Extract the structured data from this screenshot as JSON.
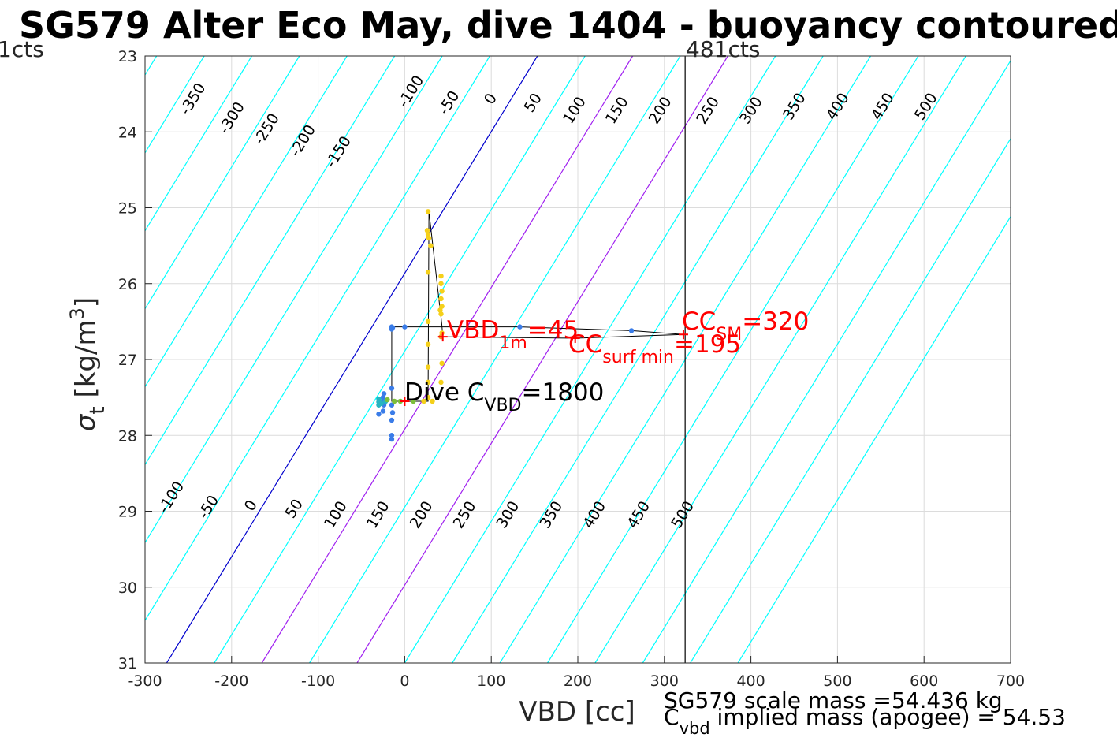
{
  "chart_data": {
    "type": "scatter",
    "title": "SG579 Alter Eco May, dive 1404 - buoyancy contoured",
    "xlabel": "VBD [cc]",
    "ylabel_main": "σ",
    "ylabel_sub": "t",
    "ylabel_unit": "[kg/m",
    "ylabel_sup": "3",
    "ylabel_close": "]",
    "xlim": [
      -300,
      700
    ],
    "ylim": [
      31,
      23
    ],
    "y_reversed": true,
    "grid": true,
    "xticks": [
      -300,
      -200,
      -100,
      0,
      100,
      200,
      300,
      400,
      500,
      600,
      700
    ],
    "xtick_labels": [
      "-300",
      "-200",
      "-100",
      "0",
      "100",
      "200",
      "300",
      "400",
      "500",
      "600",
      "700"
    ],
    "yticks": [
      23,
      24,
      25,
      26,
      27,
      28,
      29,
      30,
      31
    ],
    "ytick_labels": [
      "23",
      "24",
      "25",
      "26",
      "27",
      "28",
      "29",
      "30",
      "31"
    ],
    "colors": {
      "contour": "#00ffff",
      "zero_contour": "#0000cd",
      "magenta_contour": "#a020f0",
      "annotation": "#ff0000",
      "track": "#000000"
    },
    "contours": {
      "levels": [
        -350,
        -300,
        -250,
        -200,
        -150,
        -100,
        -50,
        0,
        50,
        100,
        150,
        200,
        250,
        300,
        350,
        400,
        450,
        500
      ],
      "slope_cc_per_sigma": -90.4,
      "zero_line_points": [
        [
          -275,
          31
        ],
        [
          148,
          23.1
        ]
      ],
      "highlight_zero": 0,
      "highlight_magenta": [
        100,
        200
      ],
      "top_labels": [
        {
          "text": "-350",
          "x": -240,
          "y": 23.6
        },
        {
          "text": "-300",
          "x": -195,
          "y": 23.85
        },
        {
          "text": "-250",
          "x": -155,
          "y": 24.0
        },
        {
          "text": "-200",
          "x": -113,
          "y": 24.15
        },
        {
          "text": "-150",
          "x": -72,
          "y": 24.3
        },
        {
          "text": "-100",
          "x": 12,
          "y": 23.5
        },
        {
          "text": "-50",
          "x": 56,
          "y": 23.65
        },
        {
          "text": "0",
          "x": 104,
          "y": 23.6
        },
        {
          "text": "50",
          "x": 153,
          "y": 23.65
        },
        {
          "text": "100",
          "x": 201,
          "y": 23.75
        },
        {
          "text": "150",
          "x": 250,
          "y": 23.75
        },
        {
          "text": "200",
          "x": 300,
          "y": 23.75
        },
        {
          "text": "250",
          "x": 355,
          "y": 23.75
        },
        {
          "text": "300",
          "x": 405,
          "y": 23.75
        },
        {
          "text": "350",
          "x": 455,
          "y": 23.7
        },
        {
          "text": "400",
          "x": 505,
          "y": 23.7
        },
        {
          "text": "450",
          "x": 557,
          "y": 23.7
        },
        {
          "text": "500",
          "x": 607,
          "y": 23.7
        }
      ],
      "bottom_labels": [
        {
          "text": "-100",
          "x": -265,
          "y": 28.85
        },
        {
          "text": "-50",
          "x": -222,
          "y": 28.98
        },
        {
          "text": "0",
          "x": -173,
          "y": 28.96
        },
        {
          "text": "50",
          "x": -123,
          "y": 29.0
        },
        {
          "text": "100",
          "x": -75,
          "y": 29.08
        },
        {
          "text": "150",
          "x": -26,
          "y": 29.08
        },
        {
          "text": "200",
          "x": 24,
          "y": 29.08
        },
        {
          "text": "250",
          "x": 74,
          "y": 29.08
        },
        {
          "text": "300",
          "x": 124,
          "y": 29.08
        },
        {
          "text": "350",
          "x": 174,
          "y": 29.08
        },
        {
          "text": "400",
          "x": 224,
          "y": 29.08
        },
        {
          "text": "450",
          "x": 275,
          "y": 29.08
        },
        {
          "text": "500",
          "x": 326,
          "y": 29.08
        }
      ]
    },
    "vertical_line": {
      "x": 324,
      "label_left": "1cts",
      "label_right": "481cts"
    },
    "track": [
      [
        -15,
        26.57
      ],
      [
        0,
        26.57
      ],
      [
        133,
        26.57
      ],
      [
        262,
        26.62
      ],
      [
        322,
        26.67
      ],
      [
        322,
        26.67
      ],
      [
        197,
        26.72
      ],
      [
        44,
        26.7
      ],
      [
        43,
        26.55
      ],
      [
        28,
        25.05
      ],
      [
        27,
        27.55
      ],
      [
        -15,
        27.55
      ],
      [
        -15,
        26.57
      ]
    ],
    "points_blue": [
      [
        -15,
        26.57
      ],
      [
        -15,
        26.6
      ],
      [
        -14,
        26.58
      ],
      [
        0,
        26.57
      ],
      [
        133,
        26.57
      ],
      [
        262,
        26.62
      ],
      [
        -15,
        27.38
      ],
      [
        -15,
        27.6
      ],
      [
        -14,
        27.7
      ],
      [
        -15,
        27.8
      ],
      [
        -15,
        28.0
      ],
      [
        -15,
        28.05
      ],
      [
        -24,
        27.45
      ],
      [
        -25,
        27.5
      ],
      [
        -24,
        27.55
      ],
      [
        -24,
        27.6
      ],
      [
        -25,
        27.68
      ],
      [
        -30,
        27.72
      ]
    ],
    "points_teal": [
      [
        -30,
        27.52
      ],
      [
        -30,
        27.56
      ],
      [
        -30,
        27.6
      ],
      [
        -29,
        27.55
      ],
      [
        -27,
        27.58
      ],
      [
        -22,
        27.55
      ]
    ],
    "points_green": [
      [
        -20,
        27.53
      ],
      [
        -12,
        27.55
      ],
      [
        -5,
        27.55
      ],
      [
        10,
        27.55
      ],
      [
        22,
        27.55
      ]
    ],
    "points_yellow": [
      [
        27,
        25.05
      ],
      [
        26,
        25.3
      ],
      [
        27,
        25.35
      ],
      [
        28,
        25.4
      ],
      [
        30,
        25.5
      ],
      [
        27,
        25.85
      ],
      [
        42,
        25.9
      ],
      [
        42,
        26.0
      ],
      [
        43,
        26.1
      ],
      [
        42,
        26.2
      ],
      [
        43,
        26.3
      ],
      [
        42,
        26.4
      ],
      [
        41,
        26.35
      ],
      [
        27,
        26.5
      ],
      [
        43,
        26.65
      ],
      [
        27,
        26.8
      ],
      [
        43,
        27.05
      ],
      [
        42,
        27.3
      ],
      [
        27,
        27.1
      ],
      [
        27,
        27.3
      ],
      [
        27,
        27.5
      ],
      [
        32,
        27.55
      ],
      [
        22,
        27.55
      ]
    ],
    "points_orange": [
      [
        42,
        26.7
      ]
    ],
    "red_markers": [
      {
        "x": 44,
        "y": 26.7
      },
      {
        "x": 322,
        "y": 26.67
      },
      {
        "x": 197,
        "y": 26.72
      },
      {
        "x": 0,
        "y": 27.55
      }
    ],
    "annotations": {
      "vbd1m_main": "VBD",
      "vbd1m_sub": "1m",
      "vbd1m_val": "=45",
      "ccsurf_main": "CC",
      "ccsurf_sub": "surf min",
      "ccsurf_val": "=195",
      "ccsm_main": "CC",
      "ccsm_sub": "SM",
      "ccsm_val": "=320",
      "dive_main": "Dive C",
      "dive_sub": "VBD",
      "dive_val": "=1800"
    },
    "notes": {
      "line1": "SG579 scale mass =54.436 kg",
      "line2_main": "C",
      "line2_sub": "vbd",
      "line2_rest": " implied mass (apogee) = 54.53"
    }
  }
}
